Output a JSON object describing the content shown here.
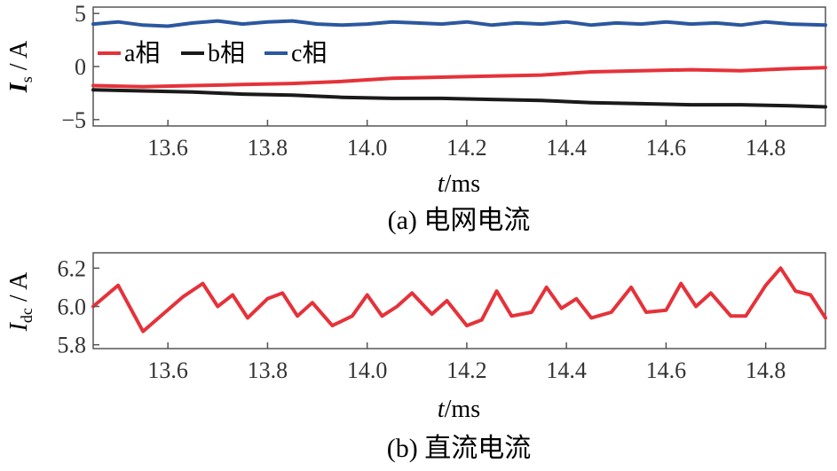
{
  "colors": {
    "a": "#e5323a",
    "b": "#1a1a1a",
    "c": "#2c57a0",
    "axis": "#555555"
  },
  "chart_data": [
    {
      "type": "line",
      "caption": "(a)  电网电流",
      "ylabel_main": "I",
      "ylabel_sub": "s",
      "ylabel_unit": " / A",
      "xlabel_main": "t",
      "xlabel_unit": "/ms",
      "xlim": [
        13.45,
        14.92
      ],
      "ylim": [
        -5.6,
        5.6
      ],
      "xticks": [
        13.6,
        13.8,
        14.0,
        14.2,
        14.4,
        14.6,
        14.8
      ],
      "xtick_labels": [
        "13.6",
        "13.8",
        "14.0",
        "14.2",
        "14.4",
        "14.6",
        "14.8"
      ],
      "yticks": [
        5,
        0,
        -5
      ],
      "ytick_labels": [
        "5",
        "0",
        "−5"
      ],
      "legend_placement": "top-left",
      "series": [
        {
          "name": "a相",
          "color_key": "a",
          "x": [
            13.45,
            13.55,
            13.65,
            13.75,
            13.85,
            13.95,
            14.05,
            14.15,
            14.25,
            14.35,
            14.45,
            14.55,
            14.65,
            14.75,
            14.85,
            14.92
          ],
          "y": [
            -1.8,
            -1.9,
            -1.8,
            -1.7,
            -1.6,
            -1.4,
            -1.1,
            -1.0,
            -0.9,
            -0.8,
            -0.5,
            -0.4,
            -0.3,
            -0.4,
            -0.2,
            -0.1
          ]
        },
        {
          "name": "b相",
          "color_key": "b",
          "x": [
            13.45,
            13.55,
            13.65,
            13.75,
            13.85,
            13.95,
            14.05,
            14.15,
            14.25,
            14.35,
            14.45,
            14.55,
            14.65,
            14.75,
            14.85,
            14.92
          ],
          "y": [
            -2.2,
            -2.3,
            -2.4,
            -2.6,
            -2.7,
            -2.9,
            -3.0,
            -3.0,
            -3.1,
            -3.2,
            -3.4,
            -3.5,
            -3.6,
            -3.6,
            -3.7,
            -3.8
          ]
        },
        {
          "name": "c相",
          "color_key": "c",
          "x": [
            13.45,
            13.5,
            13.55,
            13.6,
            13.65,
            13.7,
            13.75,
            13.8,
            13.85,
            13.9,
            13.95,
            14.0,
            14.05,
            14.1,
            14.15,
            14.2,
            14.25,
            14.3,
            14.35,
            14.4,
            14.45,
            14.5,
            14.55,
            14.6,
            14.65,
            14.7,
            14.75,
            14.8,
            14.85,
            14.92
          ],
          "y": [
            4.0,
            4.2,
            3.9,
            3.8,
            4.1,
            4.3,
            4.0,
            4.2,
            4.3,
            4.0,
            3.9,
            4.0,
            4.2,
            4.1,
            4.0,
            4.2,
            3.9,
            4.1,
            4.0,
            4.2,
            3.9,
            4.1,
            4.0,
            4.2,
            4.0,
            4.1,
            3.9,
            4.2,
            4.0,
            3.9
          ]
        }
      ]
    },
    {
      "type": "line",
      "caption": "(b)  直流电流",
      "ylabel_main": "I",
      "ylabel_sub": "dc",
      "ylabel_unit": " / A",
      "xlabel_main": "t",
      "xlabel_unit": "/ms",
      "xlim": [
        13.45,
        14.92
      ],
      "ylim": [
        5.78,
        6.28
      ],
      "xticks": [
        13.6,
        13.8,
        14.0,
        14.2,
        14.4,
        14.6,
        14.8
      ],
      "xtick_labels": [
        "13.6",
        "13.8",
        "14.0",
        "14.2",
        "14.4",
        "14.6",
        "14.8"
      ],
      "yticks": [
        6.2,
        6.0,
        5.8
      ],
      "ytick_labels": [
        "6.2",
        "6.0",
        "5.8"
      ],
      "series": [
        {
          "color_key": "a",
          "x": [
            13.45,
            13.5,
            13.55,
            13.59,
            13.63,
            13.67,
            13.7,
            13.73,
            13.76,
            13.8,
            13.83,
            13.86,
            13.89,
            13.93,
            13.97,
            14.0,
            14.03,
            14.06,
            14.09,
            14.13,
            14.16,
            14.2,
            14.23,
            14.26,
            14.29,
            14.33,
            14.36,
            14.39,
            14.42,
            14.45,
            14.49,
            14.53,
            14.56,
            14.6,
            14.63,
            14.66,
            14.69,
            14.73,
            14.76,
            14.8,
            14.83,
            14.86,
            14.89,
            14.92
          ],
          "y": [
            6.0,
            6.11,
            5.87,
            5.96,
            6.05,
            6.12,
            6.0,
            6.06,
            5.94,
            6.04,
            6.07,
            5.95,
            6.02,
            5.9,
            5.95,
            6.06,
            5.95,
            6.0,
            6.07,
            5.96,
            6.03,
            5.9,
            5.93,
            6.08,
            5.95,
            5.97,
            6.1,
            5.99,
            6.04,
            5.94,
            5.97,
            6.1,
            5.97,
            5.98,
            6.12,
            6.0,
            6.07,
            5.95,
            5.95,
            6.11,
            6.2,
            6.08,
            6.06,
            5.94
          ]
        }
      ]
    }
  ]
}
